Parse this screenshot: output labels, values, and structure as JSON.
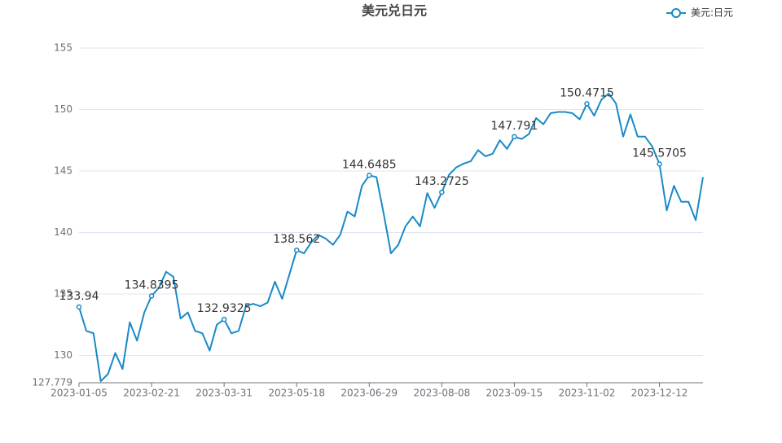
{
  "chart_data": {
    "type": "line",
    "title": "美元兑日元",
    "categories": [
      "2023-01-05",
      null,
      null,
      null,
      null,
      null,
      null,
      null,
      null,
      null,
      "2023-02-21",
      null,
      null,
      null,
      null,
      null,
      null,
      null,
      null,
      null,
      "2023-03-31",
      null,
      null,
      null,
      null,
      null,
      null,
      null,
      null,
      null,
      "2023-05-18",
      null,
      null,
      null,
      null,
      null,
      null,
      null,
      null,
      null,
      "2023-06-29",
      null,
      null,
      null,
      null,
      null,
      null,
      null,
      null,
      null,
      "2023-08-08",
      null,
      null,
      null,
      null,
      null,
      null,
      null,
      null,
      null,
      "2023-09-15",
      null,
      null,
      null,
      null,
      null,
      null,
      null,
      null,
      null,
      "2023-11-02",
      null,
      null,
      null,
      null,
      null,
      null,
      null,
      null,
      null,
      "2023-12-12",
      null,
      null,
      null,
      null,
      null,
      null
    ],
    "series": [
      {
        "name": "美元:日元",
        "color": "#1a8ac6",
        "values": [
          133.94,
          132.0,
          131.8,
          127.9,
          128.5,
          130.2,
          128.9,
          132.7,
          131.2,
          133.5,
          134.8395,
          135.5,
          136.8,
          136.4,
          133.0,
          133.5,
          132.0,
          131.8,
          130.4,
          132.5,
          132.9325,
          131.8,
          132.0,
          134.0,
          134.2,
          134.0,
          134.3,
          136.0,
          134.6,
          136.6,
          138.562,
          138.3,
          139.2,
          139.8,
          139.5,
          139.0,
          139.8,
          141.7,
          141.3,
          143.8,
          144.6485,
          144.5,
          141.5,
          138.3,
          139.0,
          140.5,
          141.3,
          140.5,
          143.2,
          142.0,
          143.2725,
          144.7,
          145.3,
          145.6,
          145.8,
          146.7,
          146.2,
          146.4,
          147.5,
          146.8,
          147.791,
          147.6,
          148.0,
          149.3,
          148.8,
          149.7,
          149.8,
          149.8,
          149.7,
          149.2,
          150.4715,
          149.5,
          150.8,
          151.3,
          150.5,
          147.8,
          149.6,
          147.8,
          147.8,
          147.0,
          145.5705,
          141.8,
          143.8,
          142.5,
          142.5,
          141.0,
          144.5
        ]
      }
    ],
    "ylim": [
      127.779,
      155
    ],
    "yticks": [
      127.779,
      130,
      135,
      140,
      145,
      150,
      155
    ],
    "grid": true,
    "legend": "top-right"
  }
}
